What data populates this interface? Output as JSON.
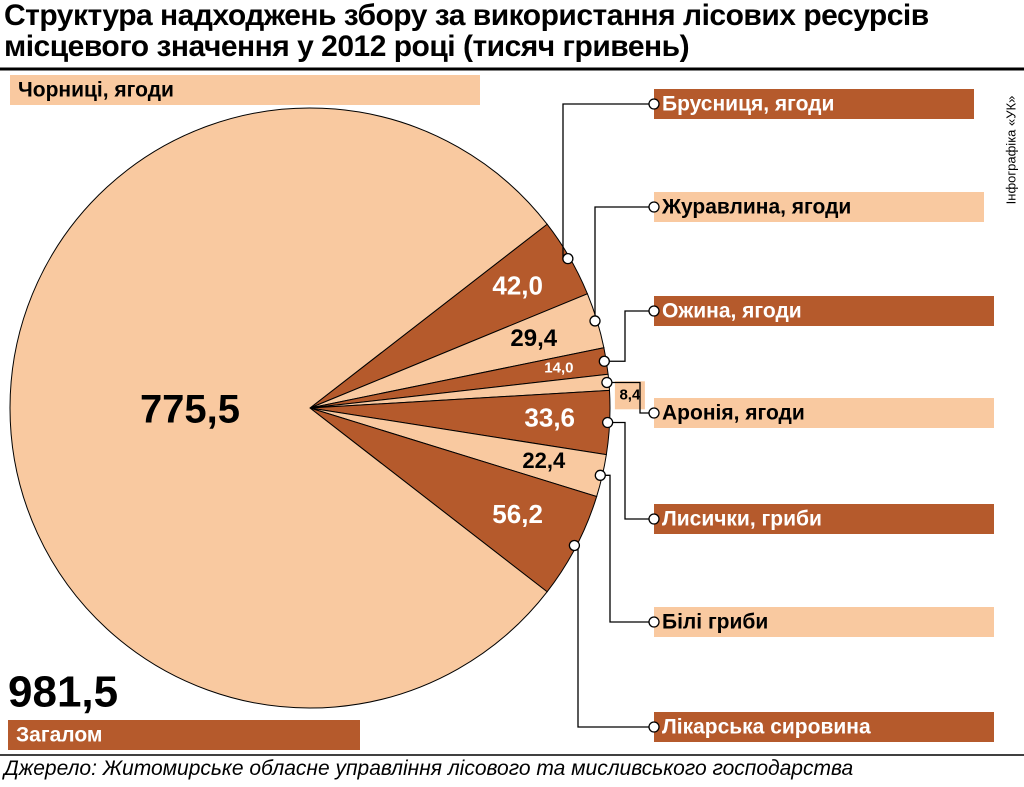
{
  "chart_data": {
    "type": "pie",
    "title": "Структура надходжень збору за використання лісових ресурсів місцевого значення у 2012 році (тисяч гривень)",
    "credit": "Інфографіка «УК»",
    "source": "Джерело: Житомирське обласне управління лісового та мисливського господарства",
    "categories": [
      "Чорниці, ягоди",
      "Брусниця, ягоди",
      "Журавлина, ягоди",
      "Ожина, ягоди",
      "Аронія, ягоди",
      "Лисички, гриби",
      "Білі гриби",
      "Лікарська сировина"
    ],
    "values": [
      775.5,
      42.0,
      29.4,
      14.0,
      8.4,
      33.6,
      22.4,
      56.2
    ],
    "value_labels": [
      "775,5",
      "42,0",
      "29,4",
      "14,0",
      "8,4",
      "33,6",
      "22,4",
      "56,2"
    ],
    "colors": [
      "#f9c9a0",
      "#b55a2c",
      "#f9c9a0",
      "#b55a2c",
      "#f9c9a0",
      "#b55a2c",
      "#f9c9a0",
      "#b55a2c"
    ],
    "total": {
      "value": 981.5,
      "label": "981,5"
    },
    "total_name": "Загалом",
    "total_color": "#b55a2c"
  }
}
